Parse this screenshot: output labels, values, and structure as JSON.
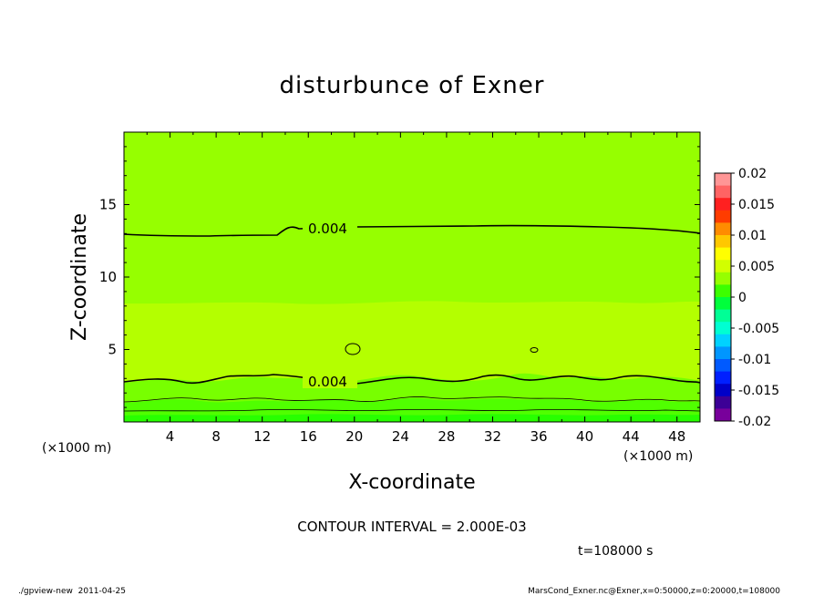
{
  "chart_data": {
    "type": "heatmap",
    "title": "disturbunce of Exner",
    "xlabel": "X-coordinate",
    "ylabel": "Z-coordinate",
    "x_unit_left": "(×1000 m)",
    "x_unit_right": "(×1000 m)",
    "xlim": [
      0,
      50
    ],
    "ylim": [
      0,
      20
    ],
    "x_ticks": [
      4,
      8,
      12,
      16,
      20,
      24,
      28,
      32,
      36,
      40,
      44,
      48
    ],
    "y_ticks": [
      5,
      10,
      15
    ],
    "contour_labels": [
      {
        "text": "0.004",
        "x": 17.5,
        "z": 13.4
      },
      {
        "text": "0.004",
        "x": 17.5,
        "z": 2.8
      }
    ],
    "colorbar": {
      "labels": [
        "0.02",
        "0.015",
        "0.01",
        "0.005",
        "0",
        "-0.005",
        "-0.01",
        "-0.015",
        "-0.02"
      ],
      "colors": [
        "#ff9696",
        "#ff6464",
        "#ff2020",
        "#ff3c00",
        "#ff8c00",
        "#ffc800",
        "#ffff00",
        "#d2ff00",
        "#96ff00",
        "#3cff00",
        "#00ff3c",
        "#00ff96",
        "#00ffd2",
        "#00d2ff",
        "#0096ff",
        "#005aff",
        "#0020ff",
        "#0000c8",
        "#3c0096",
        "#78009b"
      ]
    },
    "contour_interval": "CONTOUR INTERVAL = 2.000E-03",
    "time_label": "t=108000 s",
    "footer_left": "./gpview-new  2011-04-25",
    "footer_right": "MarsCond_Exner.nc@Exner,x=0:50000,z=0:20000,t=108000"
  }
}
